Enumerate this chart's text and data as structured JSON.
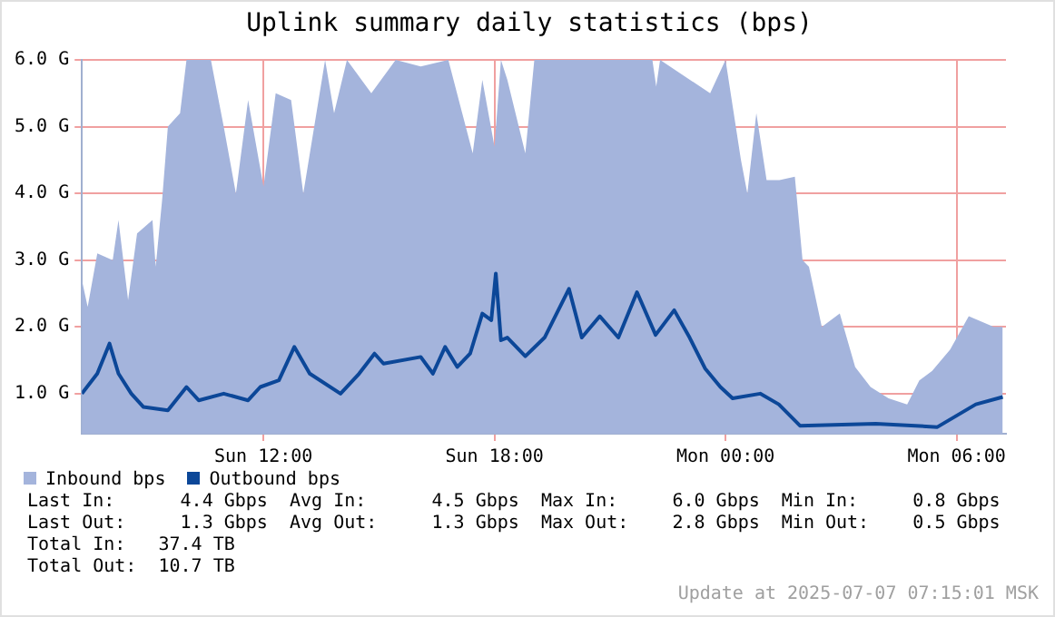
{
  "chart_data": {
    "type": "area",
    "title": "Uplink summary daily statistics (bps)",
    "xlim": [
      "2025-07-06T07:17",
      "2025-07-07T07:17"
    ],
    "xticks": [
      {
        "value": "2025-07-06T12:00",
        "label": "Sun 12:00"
      },
      {
        "value": "2025-07-06T18:00",
        "label": "Sun 18:00"
      },
      {
        "value": "2025-07-07T00:00",
        "label": "Mon 00:00"
      },
      {
        "value": "2025-07-07T06:00",
        "label": "Mon 06:00"
      }
    ],
    "ylim": [
      0.4,
      6.0
    ],
    "yticks": [
      {
        "value": 1,
        "label": "1.0 G"
      },
      {
        "value": 2,
        "label": "2.0 G"
      },
      {
        "value": 3,
        "label": "3.0 G"
      },
      {
        "value": 4,
        "label": "4.0 G"
      },
      {
        "value": 5,
        "label": "5.0 G"
      },
      {
        "value": 6,
        "label": "6.0 G"
      }
    ],
    "grid": true,
    "legend": "bottom left",
    "series": [
      {
        "name": "Inbound bps",
        "type": "area",
        "color": "#a4b4dc",
        "x": [
          "2025-07-06T07:17",
          "2025-07-06T07:26",
          "2025-07-06T07:41",
          "2025-07-06T08:05",
          "2025-07-06T08:14",
          "2025-07-06T08:29",
          "2025-07-06T08:43",
          "2025-07-06T09:07",
          "2025-07-06T09:12",
          "2025-07-06T09:22",
          "2025-07-06T09:31",
          "2025-07-06T09:50",
          "2025-07-06T10:00",
          "2025-07-06T10:38",
          "2025-07-06T10:58",
          "2025-07-06T11:17",
          "2025-07-06T11:36",
          "2025-07-06T12:00",
          "2025-07-06T12:19",
          "2025-07-06T12:43",
          "2025-07-06T13:02",
          "2025-07-06T13:36",
          "2025-07-06T13:50",
          "2025-07-06T14:10",
          "2025-07-06T14:48",
          "2025-07-06T15:26",
          "2025-07-06T16:05",
          "2025-07-06T16:48",
          "2025-07-06T17:26",
          "2025-07-06T17:41",
          "2025-07-06T18:00",
          "2025-07-06T18:10",
          "2025-07-06T18:20",
          "2025-07-06T18:48",
          "2025-07-06T19:02",
          "2025-07-06T22:06",
          "2025-07-06T22:12",
          "2025-07-06T22:18",
          "2025-07-06T23:36",
          "2025-07-07T00:00",
          "2025-07-07T00:24",
          "2025-07-07T00:34",
          "2025-07-07T00:48",
          "2025-07-07T01:04",
          "2025-07-07T01:24",
          "2025-07-07T01:48",
          "2025-07-07T02:00",
          "2025-07-07T02:10",
          "2025-07-07T02:30",
          "2025-07-07T02:58",
          "2025-07-07T03:22",
          "2025-07-07T03:46",
          "2025-07-07T04:14",
          "2025-07-07T04:43",
          "2025-07-07T05:02",
          "2025-07-07T05:22",
          "2025-07-07T05:50",
          "2025-07-07T06:19",
          "2025-07-07T06:58",
          "2025-07-07T07:12"
        ],
        "values": [
          2.7,
          2.3,
          3.1,
          3.0,
          3.6,
          2.4,
          3.4,
          3.6,
          2.9,
          3.9,
          5.0,
          5.2,
          6.0,
          6.0,
          5.0,
          4.0,
          5.4,
          4.1,
          5.5,
          5.4,
          4.0,
          6.0,
          5.2,
          6.0,
          5.5,
          6.0,
          5.9,
          6.0,
          4.6,
          5.7,
          4.7,
          6.0,
          5.7,
          4.6,
          6.0,
          6.0,
          5.6,
          6.0,
          5.5,
          6.0,
          4.5,
          4.0,
          5.2,
          4.2,
          4.2,
          4.25,
          3.0,
          2.9,
          2.0,
          2.2,
          1.4,
          1.1,
          0.93,
          0.84,
          1.2,
          1.34,
          1.66,
          2.16,
          2.0,
          2.0
        ]
      },
      {
        "name": "Outbound bps",
        "type": "line",
        "color": "#0c4798",
        "x": [
          "2025-07-06T07:17",
          "2025-07-06T07:41",
          "2025-07-06T08:00",
          "2025-07-06T08:14",
          "2025-07-06T08:34",
          "2025-07-06T08:53",
          "2025-07-06T09:31",
          "2025-07-06T10:00",
          "2025-07-06T10:19",
          "2025-07-06T10:58",
          "2025-07-06T11:36",
          "2025-07-06T11:55",
          "2025-07-06T12:24",
          "2025-07-06T12:48",
          "2025-07-06T13:12",
          "2025-07-06T14:00",
          "2025-07-06T14:29",
          "2025-07-06T14:53",
          "2025-07-06T15:07",
          "2025-07-06T16:05",
          "2025-07-06T16:24",
          "2025-07-06T16:43",
          "2025-07-06T17:02",
          "2025-07-06T17:22",
          "2025-07-06T17:41",
          "2025-07-06T17:55",
          "2025-07-06T18:02",
          "2025-07-06T18:10",
          "2025-07-06T18:20",
          "2025-07-06T18:48",
          "2025-07-06T19:18",
          "2025-07-06T19:56",
          "2025-07-06T20:16",
          "2025-07-06T20:44",
          "2025-07-06T21:13",
          "2025-07-06T21:42",
          "2025-07-06T22:11",
          "2025-07-06T22:40",
          "2025-07-06T23:04",
          "2025-07-06T23:28",
          "2025-07-06T23:52",
          "2025-07-07T00:11",
          "2025-07-07T00:54",
          "2025-07-07T01:23",
          "2025-07-07T01:56",
          "2025-07-07T03:54",
          "2025-07-07T05:30",
          "2025-07-07T06:30",
          "2025-07-07T07:12"
        ],
        "values": [
          1.0,
          1.3,
          1.75,
          1.3,
          1.0,
          0.8,
          0.75,
          1.1,
          0.9,
          1.0,
          0.9,
          1.1,
          1.2,
          1.7,
          1.3,
          1.0,
          1.3,
          1.6,
          1.45,
          1.55,
          1.3,
          1.7,
          1.4,
          1.6,
          2.2,
          2.1,
          2.8,
          1.8,
          1.84,
          1.56,
          1.84,
          2.57,
          1.84,
          2.16,
          1.84,
          2.52,
          1.88,
          2.25,
          1.84,
          1.38,
          1.1,
          0.93,
          1.0,
          0.84,
          0.52,
          0.55,
          0.5,
          0.84,
          0.95
        ]
      }
    ],
    "annotations": [
      "Last In:      4.4 Gbps  Avg In:      4.5 Gbps  Max In:     6.0 Gbps  Min In:     0.8 Gbps",
      "Last Out:     1.3 Gbps  Avg Out:     1.3 Gbps  Max Out:    2.8 Gbps  Min Out:    0.5 Gbps",
      "Total In:   37.4 TB",
      "Total Out:  10.7 TB",
      {
        "text": "Update at 2025-07-07 07:15:01 MSK"
      }
    ]
  }
}
